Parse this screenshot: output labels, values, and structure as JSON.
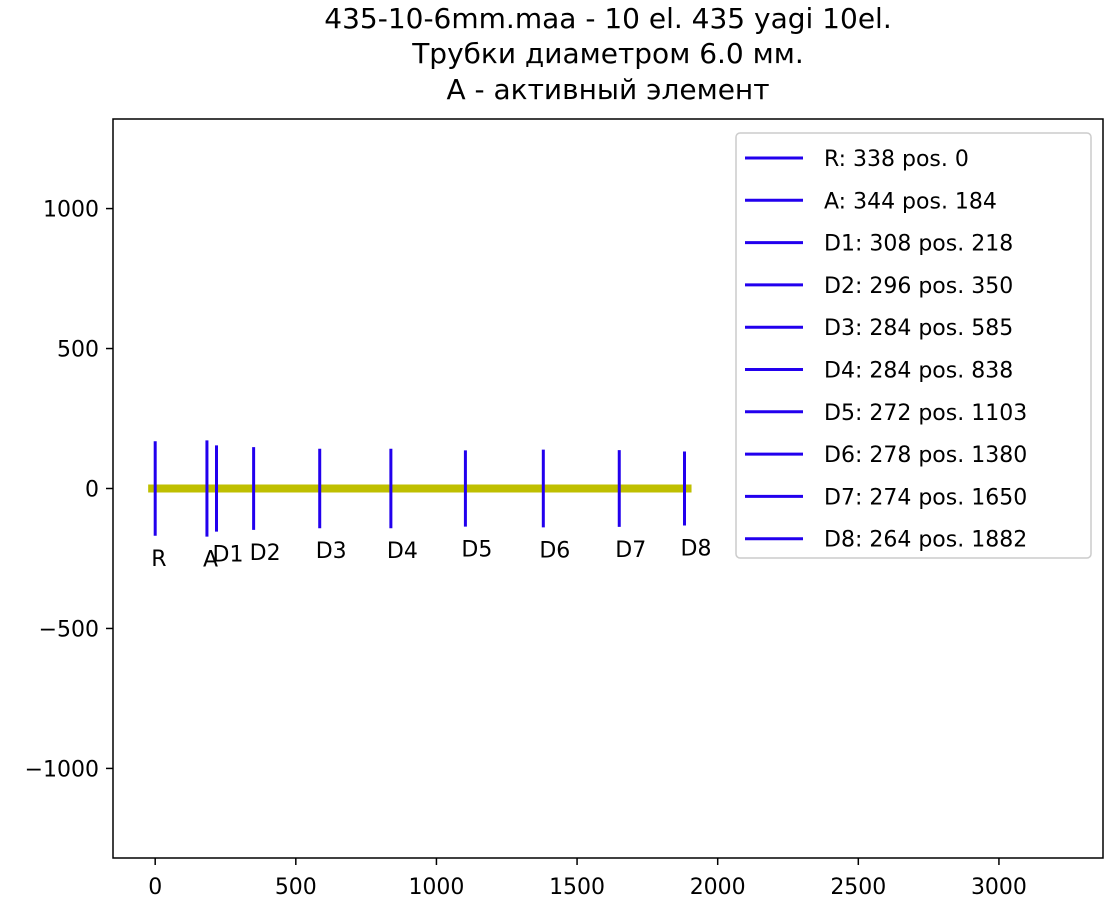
{
  "chart_data": {
    "type": "line",
    "title_lines": [
      "435-10-6mm.maa - 10 el. 435 yagi 10el.",
      "Трубки диаметром 6.0 мм.",
      "А - активный элемент"
    ],
    "xlabel": "",
    "ylabel": "",
    "xlim": [
      -150,
      3370
    ],
    "ylim": [
      -1320,
      1320
    ],
    "x_ticks": [
      0,
      500,
      1000,
      1500,
      2000,
      2500,
      3000
    ],
    "y_ticks": [
      1000,
      500,
      0,
      -500,
      -1000
    ],
    "x_tick_labels": [
      "0",
      "500",
      "1000",
      "1500",
      "2000",
      "2500",
      "3000"
    ],
    "y_tick_labels": [
      "1000",
      "500",
      "0",
      "−500",
      "−1000"
    ],
    "grid": false,
    "legend_position": "top-right",
    "boom": {
      "x": [
        -25,
        1907
      ],
      "y": 0,
      "color": "#bfbf00"
    },
    "element_color": "#2200ee",
    "series": [
      {
        "name": "R: 338 pos. 0",
        "label": "R",
        "pos": 0,
        "length": 338
      },
      {
        "name": "A: 344 pos. 184",
        "label": "A",
        "pos": 184,
        "length": 344
      },
      {
        "name": "D1: 308 pos. 218",
        "label": "D1",
        "pos": 218,
        "length": 308
      },
      {
        "name": "D2: 296 pos. 350",
        "label": "D2",
        "pos": 350,
        "length": 296
      },
      {
        "name": "D3: 284 pos. 585",
        "label": "D3",
        "pos": 585,
        "length": 284
      },
      {
        "name": "D4: 284 pos. 838",
        "label": "D4",
        "pos": 838,
        "length": 284
      },
      {
        "name": "D5: 272 pos. 1103",
        "label": "D5",
        "pos": 1103,
        "length": 272
      },
      {
        "name": "D6: 278 pos. 1380",
        "label": "D6",
        "pos": 1380,
        "length": 278
      },
      {
        "name": "D7: 274 pos. 1650",
        "label": "D7",
        "pos": 1650,
        "length": 274
      },
      {
        "name": "D8: 264 pos. 1882",
        "label": "D8",
        "pos": 1882,
        "length": 264
      }
    ]
  }
}
